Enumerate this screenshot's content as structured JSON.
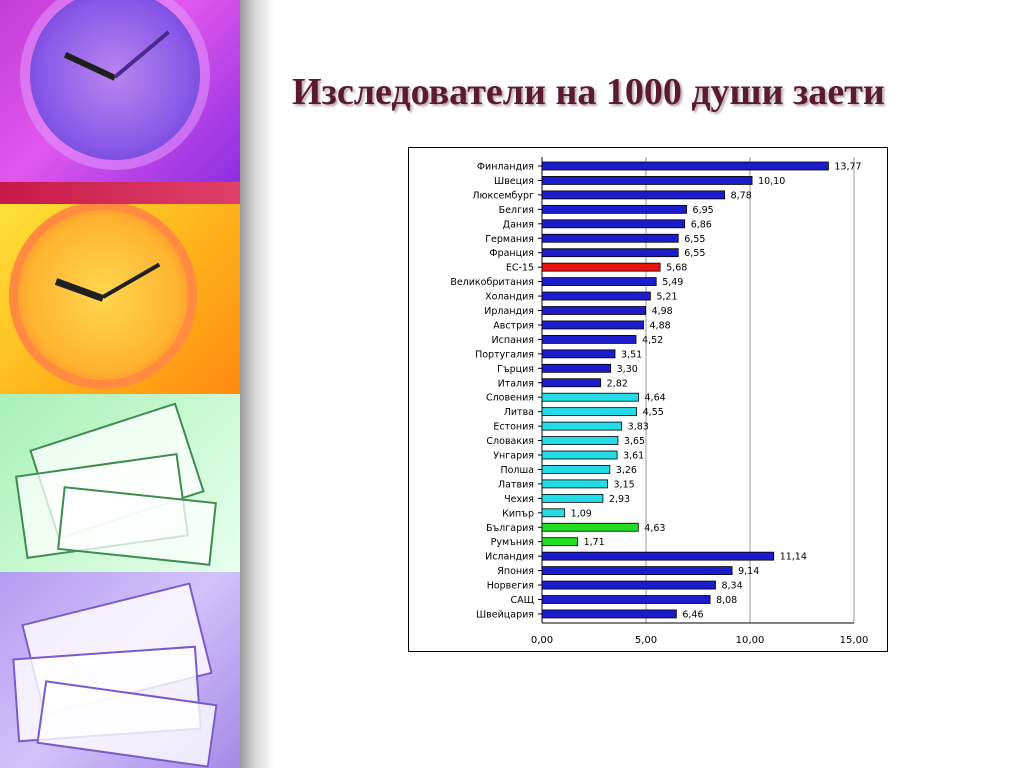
{
  "slide": {
    "title": "Изследователи на 1000 души заети"
  },
  "decor": {
    "left_strip": [
      "clock-image",
      "clock-image",
      "papers-image",
      "papers-image"
    ]
  },
  "chart_data": {
    "type": "bar",
    "orientation": "horizontal",
    "title": "",
    "xlabel": "",
    "ylabel": "",
    "xlim": [
      0,
      15
    ],
    "xticks": [
      "0,00",
      "5,00",
      "10,00",
      "15,00"
    ],
    "grid": "vertical",
    "categories": [
      "Финландия",
      "Швеция",
      "Люксембург",
      "Белгия",
      "Дания",
      "Германия",
      "Франция",
      "ЕС-15",
      "Великобритания",
      "Холандия",
      "Ирландия",
      "Австрия",
      "Испания",
      "Португалия",
      "Гърция",
      "Италия",
      "Словения",
      "Литва",
      "Естония",
      "Словакия",
      "Унгария",
      "Полша",
      "Латвия",
      "Чехия",
      "Кипър",
      "България",
      "Румъния",
      "Исландия",
      "Япония",
      "Норвегия",
      "САЩ",
      "Швейцария"
    ],
    "values": [
      13.77,
      10.1,
      8.78,
      6.95,
      6.86,
      6.55,
      6.55,
      5.68,
      5.49,
      5.21,
      4.98,
      4.88,
      4.52,
      3.51,
      3.3,
      2.82,
      4.64,
      4.55,
      3.83,
      3.65,
      3.61,
      3.26,
      3.15,
      2.93,
      1.09,
      4.63,
      1.71,
      11.14,
      9.14,
      8.34,
      8.08,
      6.46
    ],
    "value_labels": [
      "13,77",
      "10,10",
      "8,78",
      "6,95",
      "6,86",
      "6,55",
      "6,55",
      "5,68",
      "5,49",
      "5,21",
      "4,98",
      "4,88",
      "4,52",
      "3,51",
      "3,30",
      "2,82",
      "4,64",
      "4,55",
      "3,83",
      "3,65",
      "3,61",
      "3,26",
      "3,15",
      "2,93",
      "1,09",
      "4,63",
      "1,71",
      "11,14",
      "9,14",
      "8,34",
      "8,08",
      "6,46"
    ],
    "bar_colors": [
      "#1c1ccc",
      "#1c1ccc",
      "#1c1ccc",
      "#1c1ccc",
      "#1c1ccc",
      "#1c1ccc",
      "#1c1ccc",
      "#ee1111",
      "#1c1ccc",
      "#1c1ccc",
      "#1c1ccc",
      "#1c1ccc",
      "#1c1ccc",
      "#1c1ccc",
      "#1c1ccc",
      "#1c1ccc",
      "#22dde8",
      "#22dde8",
      "#22dde8",
      "#22dde8",
      "#22dde8",
      "#22dde8",
      "#22dde8",
      "#22dde8",
      "#22dde8",
      "#22dd22",
      "#22dd22",
      "#1c1ccc",
      "#1c1ccc",
      "#1c1ccc",
      "#1c1ccc",
      "#1c1ccc"
    ]
  }
}
